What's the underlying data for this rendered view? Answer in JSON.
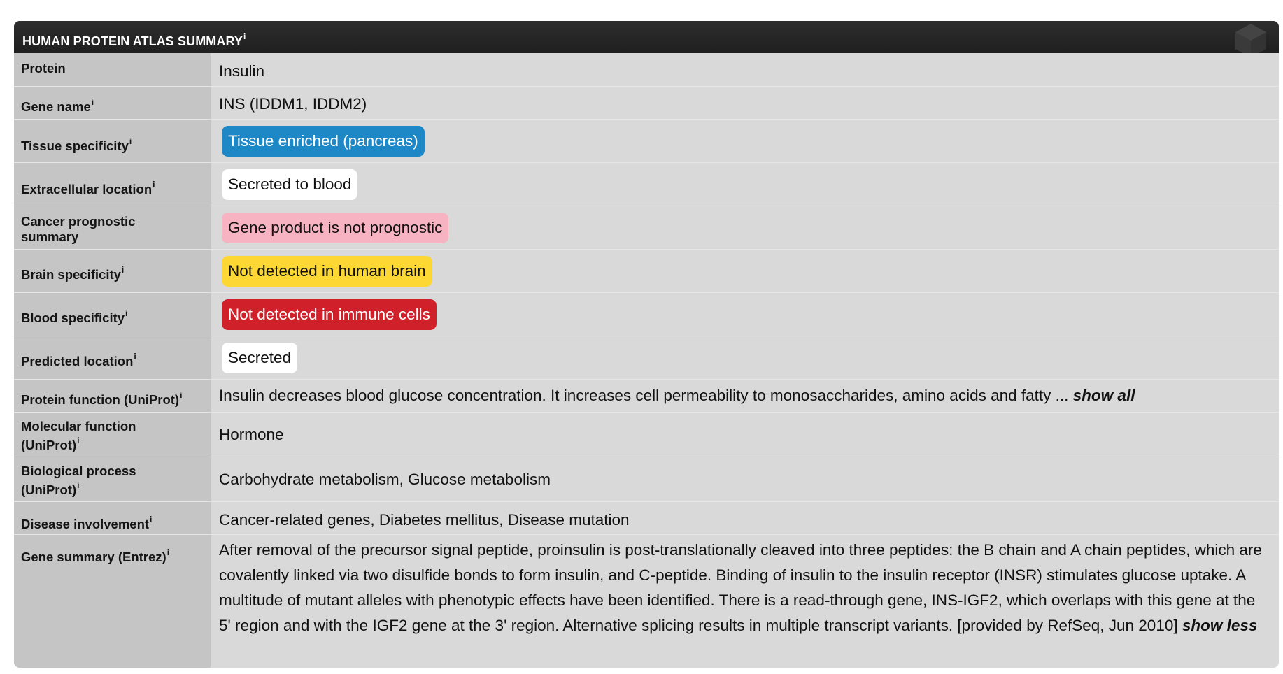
{
  "header": {
    "title": "HUMAN PROTEIN ATLAS SUMMARY",
    "info": "i"
  },
  "rows": {
    "protein": {
      "label": "Protein",
      "value": "Insulin"
    },
    "gene_name": {
      "label": "Gene name",
      "info": "i",
      "value": "INS (IDDM1, IDDM2)"
    },
    "tissue_specificity": {
      "label": "Tissue specificity",
      "info": "i",
      "value": "Tissue enriched (pancreas)"
    },
    "extracellular_location": {
      "label": "Extracellular location",
      "info": "i",
      "value": "Secreted to blood"
    },
    "cancer_prognostic": {
      "label_line1": "Cancer prognostic",
      "label_line2": "summary",
      "value": "Gene product is not prognostic"
    },
    "brain_specificity": {
      "label": "Brain specificity",
      "info": "i",
      "value": "Not detected in human brain"
    },
    "blood_specificity": {
      "label": "Blood specificity",
      "info": "i",
      "value": "Not detected in immune cells"
    },
    "predicted_location": {
      "label": "Predicted location",
      "info": "i",
      "value": "Secreted"
    },
    "protein_function": {
      "label": "Protein function (UniProt)",
      "info": "i",
      "value": "Insulin decreases blood glucose concentration. It increases cell permeability to monosaccharides, amino acids and fatty ...",
      "link": "show all"
    },
    "molecular_function": {
      "label_line1": "Molecular function",
      "label_line2": "(UniProt)",
      "info": "i",
      "value": "Hormone"
    },
    "biological_process": {
      "label_line1": "Biological process",
      "label_line2": "(UniProt)",
      "info": "i",
      "value": "Carbohydrate metabolism, Glucose metabolism"
    },
    "disease_involvement": {
      "label": "Disease involvement",
      "info": "i",
      "value": "Cancer-related genes, Diabetes mellitus, Disease mutation"
    },
    "gene_summary": {
      "label": "Gene summary (Entrez)",
      "info": "i",
      "value": "After removal of the precursor signal peptide, proinsulin is post-translationally cleaved into three peptides: the B chain and A chain peptides, which are covalently linked via two disulfide bonds to form insulin, and C-peptide. Binding of insulin to the insulin receptor (INSR) stimulates glucose uptake. A multitude of mutant alleles with phenotypic effects have been identified. There is a read-through gene, INS-IGF2, which overlaps with this gene at the 5' region and with the IGF2 gene at the 3' region. Alternative splicing results in multiple transcript variants. [provided by RefSeq, Jun 2010]",
      "link": "show less"
    }
  },
  "colors": {
    "header_bg": "#262626",
    "panel_bg": "#d9d9d9",
    "label_col_bg": "#c5c5c5",
    "tissue_enriched": "#1e88c7",
    "secreted_to_blood": "#ffffff",
    "not_prognostic": "#f7b3c2",
    "brain_not_detected": "#fdd835",
    "blood_not_detected": "#d0202a",
    "secreted": "#ffffff"
  }
}
